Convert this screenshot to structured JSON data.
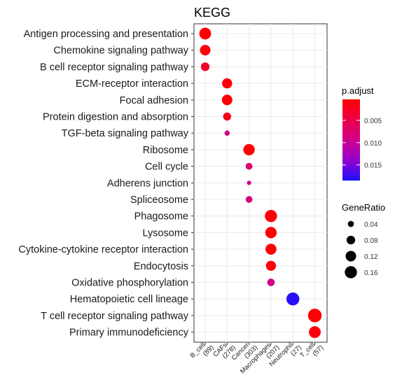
{
  "chart_data": {
    "type": "scatter",
    "title": "KEGG",
    "xlabel": "",
    "ylabel": "",
    "x_categories": [
      [
        "B_cell",
        "(89)"
      ],
      [
        "CAFs",
        "(278)"
      ],
      [
        "Cancer",
        "(303)"
      ],
      [
        "Macrophages",
        "(207)"
      ],
      [
        "Neutrophil",
        "(27)"
      ],
      [
        "T_cell",
        "(57)"
      ]
    ],
    "y_categories": [
      "Antigen processing and presentation",
      "Chemokine signaling pathway",
      "B cell receptor signaling pathway",
      "ECM-receptor interaction",
      "Focal adhesion",
      "Protein digestion and absorption",
      "TGF-beta signaling pathway",
      "Ribosome",
      "Cell cycle",
      "Adherens junction",
      "Spliceosome",
      "Phagosome",
      "Lysosome",
      "Cytokine-cytokine receptor interaction",
      "Endocytosis",
      "Oxidative phosphorylation",
      "Hematopoietic cell lineage",
      "T cell receptor signaling pathway",
      "Primary immunodeficiency"
    ],
    "points": [
      {
        "cluster": 0,
        "term": 0,
        "gene_ratio": 0.15,
        "p_adjust": 0.0005
      },
      {
        "cluster": 0,
        "term": 1,
        "gene_ratio": 0.12,
        "p_adjust": 0.001
      },
      {
        "cluster": 0,
        "term": 2,
        "gene_ratio": 0.08,
        "p_adjust": 0.003
      },
      {
        "cluster": 1,
        "term": 3,
        "gene_ratio": 0.11,
        "p_adjust": 0.0008
      },
      {
        "cluster": 1,
        "term": 4,
        "gene_ratio": 0.12,
        "p_adjust": 0.0008
      },
      {
        "cluster": 1,
        "term": 5,
        "gene_ratio": 0.07,
        "p_adjust": 0.002
      },
      {
        "cluster": 1,
        "term": 6,
        "gene_ratio": 0.03,
        "p_adjust": 0.009
      },
      {
        "cluster": 2,
        "term": 7,
        "gene_ratio": 0.14,
        "p_adjust": 0.0005
      },
      {
        "cluster": 2,
        "term": 8,
        "gene_ratio": 0.05,
        "p_adjust": 0.0075
      },
      {
        "cluster": 2,
        "term": 9,
        "gene_ratio": 0.02,
        "p_adjust": 0.01
      },
      {
        "cluster": 2,
        "term": 10,
        "gene_ratio": 0.05,
        "p_adjust": 0.0085
      },
      {
        "cluster": 3,
        "term": 11,
        "gene_ratio": 0.16,
        "p_adjust": 0.0005
      },
      {
        "cluster": 3,
        "term": 12,
        "gene_ratio": 0.14,
        "p_adjust": 0.0005
      },
      {
        "cluster": 3,
        "term": 13,
        "gene_ratio": 0.13,
        "p_adjust": 0.0005
      },
      {
        "cluster": 3,
        "term": 14,
        "gene_ratio": 0.11,
        "p_adjust": 0.001
      },
      {
        "cluster": 3,
        "term": 15,
        "gene_ratio": 0.06,
        "p_adjust": 0.009
      },
      {
        "cluster": 4,
        "term": 16,
        "gene_ratio": 0.18,
        "p_adjust": 0.018
      },
      {
        "cluster": 5,
        "term": 17,
        "gene_ratio": 0.2,
        "p_adjust": 0.0005
      },
      {
        "cluster": 5,
        "term": 18,
        "gene_ratio": 0.15,
        "p_adjust": 0.001
      }
    ],
    "color_legend": {
      "title": "p.adjust",
      "ticks": [
        0.005,
        0.01,
        0.015
      ],
      "tick_labels": [
        "0.005",
        "0.010",
        "0.015"
      ],
      "range": [
        0.0003,
        0.0185
      ],
      "low_color": "#ff0000",
      "high_color": "#0000ff"
    },
    "size_legend": {
      "title": "GeneRatio",
      "values": [
        0.04,
        0.08,
        0.12,
        0.16
      ],
      "labels": [
        "0.04",
        "0.08",
        "0.12",
        "0.16"
      ]
    },
    "grid": true,
    "legend_position": "right"
  }
}
